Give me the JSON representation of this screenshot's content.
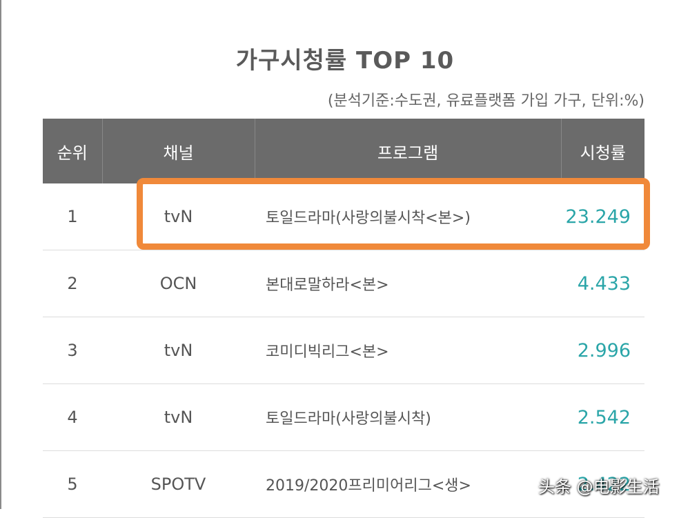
{
  "title": "가구시청률 TOP 10",
  "subtitle": "(분석기준:수도권, 유료플랫폼 가입 가구, 단위:%)",
  "headers": {
    "rank": "순위",
    "channel": "채널",
    "program": "프로그램",
    "rating": "시청률"
  },
  "rows": [
    {
      "rank": "1",
      "channel": "tvN",
      "program": "토일드라마(사랑의불시착<본>)",
      "rating": "23.249"
    },
    {
      "rank": "2",
      "channel": "OCN",
      "program": "본대로말하라<본>",
      "rating": "4.433"
    },
    {
      "rank": "3",
      "channel": "tvN",
      "program": "코미디빅리그<본>",
      "rating": "2.996"
    },
    {
      "rank": "4",
      "channel": "tvN",
      "program": "토일드라마(사랑의불시착)",
      "rating": "2.542"
    },
    {
      "rank": "5",
      "channel": "SPOTV",
      "program": "2019/2020프리미어리그<생>",
      "rating": "2.422"
    }
  ],
  "watermark": "头条 @电影生活",
  "colors": {
    "highlight": "#f0893a",
    "rating": "#2aa5a8",
    "header_bg": "#6b6b6b"
  }
}
